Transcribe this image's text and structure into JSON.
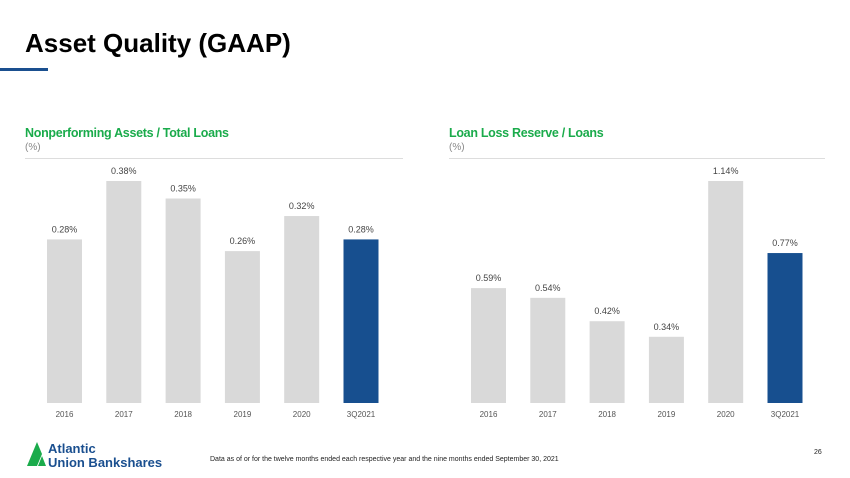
{
  "title": "Asset Quality (GAAP)",
  "footnote": "Data as of or for the twelve months ended each respective year and the nine months ended September 30, 2021",
  "page_number": "26",
  "logo_text": [
    "Atlantic",
    "Union Bankshares"
  ],
  "colors": {
    "bar": "#d9d9d9",
    "highlight": "#174f8f",
    "title_green": "#1aab4b"
  },
  "chart_data": [
    {
      "type": "bar",
      "title": "Nonperforming Assets / Total Loans",
      "subtitle": "(%)",
      "categories": [
        "2016",
        "2017",
        "2018",
        "2019",
        "2020",
        "3Q2021"
      ],
      "values": [
        0.28,
        0.38,
        0.35,
        0.26,
        0.32,
        0.28
      ],
      "labels": [
        "0.28%",
        "0.38%",
        "0.35%",
        "0.26%",
        "0.32%",
        "0.28%"
      ],
      "highlight_index": 5,
      "ylim": [
        0,
        0.38
      ]
    },
    {
      "type": "bar",
      "title": "Loan Loss Reserve / Loans",
      "subtitle": "(%)",
      "categories": [
        "2016",
        "2017",
        "2018",
        "2019",
        "2020",
        "3Q2021"
      ],
      "values": [
        0.59,
        0.54,
        0.42,
        0.34,
        1.14,
        0.77
      ],
      "labels": [
        "0.59%",
        "0.54%",
        "0.42%",
        "0.34%",
        "1.14%",
        "0.77%"
      ],
      "highlight_index": 5,
      "ylim": [
        0,
        1.14
      ]
    }
  ]
}
